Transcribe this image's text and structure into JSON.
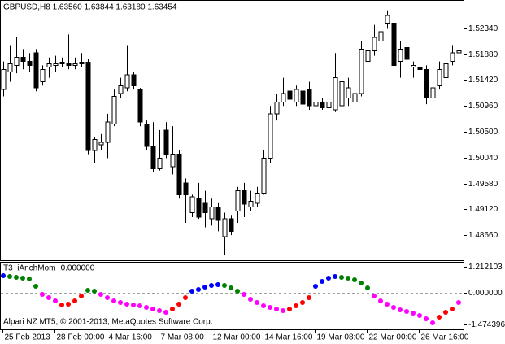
{
  "chart_data": [
    {
      "type": "candlestick",
      "title": "GBPUSD,H8  1.63560 1.63844 1.63180 1.63454",
      "open": [
        1.5125,
        1.5156,
        1.5168,
        1.5182,
        1.5175,
        1.519,
        1.5139,
        1.5165,
        1.5168,
        1.5171,
        1.5171,
        1.5168,
        1.5171,
        1.5174,
        1.5017,
        1.5027,
        1.5031,
        1.5064,
        1.5118,
        1.5128,
        1.5151,
        1.5125,
        1.5064,
        1.5024,
        1.4984,
        1.5053,
        1.4988,
        1.501,
        1.4959,
        1.4906,
        1.4931,
        1.4923,
        1.4895,
        1.4916,
        1.4863,
        1.4895,
        1.4909,
        1.4945,
        1.4916,
        1.4923,
        1.4941,
        1.5003,
        1.5082,
        1.5103,
        1.5122,
        1.5103,
        1.5122,
        1.5125,
        1.5096,
        1.5103,
        1.5093,
        1.5089,
        1.5096,
        1.511,
        1.5103,
        1.5118,
        1.5175,
        1.5194,
        1.5211,
        1.5243,
        1.5243,
        1.5175,
        1.52,
        1.5165,
        1.5165,
        1.5161,
        1.511,
        1.5132,
        1.5146,
        1.5175,
        1.519
      ],
      "high": [
        1.5175,
        1.5204,
        1.5218,
        1.5197,
        1.519,
        1.5197,
        1.5168,
        1.5182,
        1.5185,
        1.5182,
        1.5223,
        1.5182,
        1.519,
        1.5179,
        1.5041,
        1.5046,
        1.5082,
        1.5125,
        1.5146,
        1.5204,
        1.5156,
        1.5128,
        1.507,
        1.5067,
        1.5053,
        1.5067,
        1.506,
        1.5017,
        1.4967,
        1.4938,
        1.4959,
        1.4945,
        1.4931,
        1.4923,
        1.4906,
        1.4902,
        1.4952,
        1.4959,
        1.4945,
        1.4952,
        1.5017,
        1.5096,
        1.5118,
        1.5146,
        1.5132,
        1.5132,
        1.5139,
        1.5139,
        1.5113,
        1.511,
        1.5118,
        1.519,
        1.5168,
        1.5146,
        1.5132,
        1.5211,
        1.5211,
        1.524,
        1.5254,
        1.5266,
        1.5254,
        1.5211,
        1.5204,
        1.5175,
        1.5171,
        1.5168,
        1.5139,
        1.5175,
        1.5197,
        1.5204,
        1.5218
      ],
      "low": [
        1.5113,
        1.5139,
        1.5154,
        1.5161,
        1.5156,
        1.5122,
        1.5132,
        1.5146,
        1.5156,
        1.5165,
        1.5161,
        1.5161,
        1.5165,
        1.501,
        1.4995,
        1.5017,
        1.5003,
        1.506,
        1.511,
        1.5122,
        1.5125,
        1.506,
        1.5017,
        1.4978,
        1.4981,
        1.5003,
        1.4974,
        1.4931,
        1.4888,
        1.4898,
        1.4895,
        1.488,
        1.4883,
        1.4873,
        1.483,
        1.4866,
        1.4888,
        1.4898,
        1.4909,
        1.4916,
        1.4938,
        1.4995,
        1.507,
        1.5096,
        1.5082,
        1.5096,
        1.5089,
        1.5089,
        1.5089,
        1.5089,
        1.5085,
        1.5085,
        1.5031,
        1.5096,
        1.5093,
        1.5113,
        1.5168,
        1.5185,
        1.5204,
        1.5233,
        1.5154,
        1.5146,
        1.5168,
        1.5146,
        1.5154,
        1.5099,
        1.5103,
        1.5125,
        1.5136,
        1.5168,
        1.5168
      ],
      "close": [
        1.5161,
        1.5171,
        1.5182,
        1.5175,
        1.5168,
        1.5128,
        1.5161,
        1.5171,
        1.5171,
        1.5174,
        1.5168,
        1.5171,
        1.5174,
        1.5017,
        1.5036,
        1.5031,
        1.5067,
        1.5113,
        1.5132,
        1.5151,
        1.5132,
        1.5067,
        1.5024,
        1.4984,
        1.5003,
        1.501,
        1.501,
        1.4938,
        1.4938,
        1.4934,
        1.4898,
        1.4906,
        1.4916,
        1.4892,
        1.4895,
        1.4873,
        1.4945,
        1.4921,
        1.4926,
        1.4941,
        1.5003,
        1.5082,
        1.5103,
        1.5118,
        1.5108,
        1.5125,
        1.5099,
        1.5096,
        1.5103,
        1.5093,
        1.5103,
        1.5146,
        1.5139,
        1.5128,
        1.5118,
        1.5197,
        1.5194,
        1.5218,
        1.5228,
        1.5257,
        1.5168,
        1.5197,
        1.5179,
        1.5168,
        1.5161,
        1.511,
        1.5128,
        1.5161,
        1.5171,
        1.519,
        1.5194
      ],
      "up_color": "#ffffff",
      "down_color": "#000000",
      "line_color": "#000000",
      "ylim": [
        1.48214,
        1.52829
      ],
      "yticks": [
        {
          "value": 1.5234,
          "label": "1.52340"
        },
        {
          "value": 1.5188,
          "label": "1.51880"
        },
        {
          "value": 1.5142,
          "label": "1.51420"
        },
        {
          "value": 1.5096,
          "label": "1.50960"
        },
        {
          "value": 1.505,
          "label": "1.50500"
        },
        {
          "value": 1.5004,
          "label": "1.50040"
        },
        {
          "value": 1.4958,
          "label": "1.49580"
        },
        {
          "value": 1.4912,
          "label": "1.49120"
        },
        {
          "value": 1.4866,
          "label": "1.48660"
        }
      ]
    },
    {
      "type": "scatter",
      "title": "T3_iAnchMom -0.000000",
      "annotation": "Alpari NZ MT5, © 2001-2013, MetaQuotes Software Corp.",
      "categories": [
        "25 Feb 2013",
        null,
        null,
        null,
        null,
        null,
        null,
        null,
        "28 Feb 00:00",
        null,
        null,
        null,
        null,
        null,
        null,
        null,
        "4 Mar 16:00",
        null,
        null,
        null,
        null,
        null,
        null,
        null,
        "7 Mar 08:00",
        null,
        null,
        null,
        null,
        null,
        null,
        null,
        "12 Mar 00:00",
        null,
        null,
        null,
        null,
        null,
        null,
        null,
        "14 Mar 16:00",
        null,
        null,
        null,
        null,
        null,
        null,
        null,
        "19 Mar 08:00",
        null,
        null,
        null,
        null,
        null,
        null,
        null,
        "22 Mar 00:00",
        null,
        null,
        null,
        null,
        null,
        null,
        null,
        "26 Mar 16:00",
        null,
        null,
        null,
        null,
        null,
        null
      ],
      "values": [
        0.796,
        0.758,
        0.72,
        0.682,
        0.644,
        0.303,
        -0.076,
        -0.227,
        -0.379,
        -0.569,
        -0.531,
        -0.379,
        -0.152,
        0.114,
        0.076,
        -0.076,
        -0.227,
        -0.379,
        -0.455,
        -0.531,
        -0.569,
        -0.606,
        -0.682,
        -0.758,
        -0.834,
        -0.91,
        -0.758,
        -0.531,
        -0.227,
        0.076,
        0.152,
        0.265,
        0.341,
        0.379,
        0.341,
        0.227,
        0.076,
        -0.076,
        -0.303,
        -0.455,
        -0.606,
        -0.682,
        -0.758,
        -0.834,
        -0.758,
        -0.606,
        -0.455,
        -0.227,
        0.303,
        0.531,
        0.682,
        0.758,
        0.72,
        0.682,
        0.606,
        0.455,
        0.227,
        -0.152,
        -0.379,
        -0.531,
        -0.682,
        -0.796,
        -0.872,
        -0.948,
        -1.061,
        -1.213,
        -1.4,
        -1.137,
        -0.91,
        -0.758,
        -0.455
      ],
      "point_colors": [
        "#0000ff",
        "#008000",
        "#008000",
        "#008000",
        "#008000",
        "#008000",
        "#ff00ff",
        "#ff00ff",
        "#ff00ff",
        "#ff0000",
        "#ff0000",
        "#ff0000",
        "#ff0000",
        "#008000",
        "#008000",
        "#ff00ff",
        "#ff00ff",
        "#ff00ff",
        "#ff00ff",
        "#ff00ff",
        "#ff00ff",
        "#ff00ff",
        "#ff00ff",
        "#ff00ff",
        "#ff00ff",
        "#ff00ff",
        "#ff0000",
        "#ff0000",
        "#ff0000",
        "#0000ff",
        "#0000ff",
        "#0000ff",
        "#0000ff",
        "#0000ff",
        "#008000",
        "#008000",
        "#008000",
        "#ff00ff",
        "#ff00ff",
        "#ff00ff",
        "#ff00ff",
        "#ff00ff",
        "#ff00ff",
        "#ff00ff",
        "#ff0000",
        "#ff0000",
        "#ff0000",
        "#ff0000",
        "#0000ff",
        "#0000ff",
        "#0000ff",
        "#0000ff",
        "#008000",
        "#008000",
        "#008000",
        "#008000",
        "#008000",
        "#ff00ff",
        "#ff00ff",
        "#ff00ff",
        "#ff00ff",
        "#ff00ff",
        "#ff00ff",
        "#ff00ff",
        "#ff00ff",
        "#ff00ff",
        "#ff00ff",
        "#ff0000",
        "#ff0000",
        "#ff0000",
        "#ff00ff"
      ],
      "ylim": [
        -1.705,
        1.4
      ],
      "yticks": [
        1.212103,
        {
          "value": 0,
          "label": "0.000000"
        },
        -1.474396
      ],
      "levels": [
        0
      ]
    }
  ]
}
